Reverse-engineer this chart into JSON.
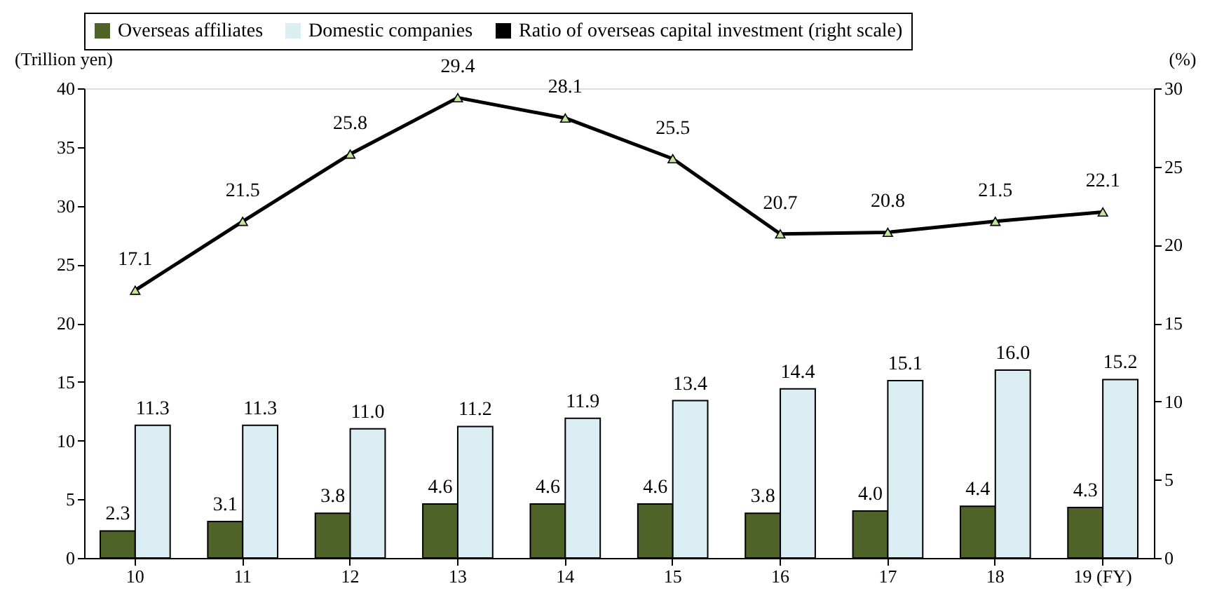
{
  "chart_data": {
    "type": "bar",
    "categories": [
      "10",
      "11",
      "12",
      "13",
      "14",
      "15",
      "16",
      "17",
      "18",
      "19 (FY)"
    ],
    "ylabel": "(Trillion yen)",
    "y2label": "(%)",
    "ylim": [
      0,
      40
    ],
    "yticks": [
      0,
      5,
      10,
      15,
      20,
      25,
      30,
      35,
      40
    ],
    "y2lim": [
      0,
      30
    ],
    "y2ticks": [
      0,
      5,
      10,
      15,
      20,
      25,
      30
    ],
    "series": [
      {
        "name": "Overseas affiliates",
        "color": "#4f6228",
        "values": [
          2.3,
          3.1,
          3.8,
          4.6,
          4.6,
          4.6,
          3.8,
          4.0,
          4.4,
          4.3
        ],
        "value_labels": [
          "2.3",
          "3.1",
          "3.8",
          "4.6",
          "4.6",
          "4.6",
          "3.8",
          "4.0",
          "4.4",
          "4.3"
        ]
      },
      {
        "name": "Domestic companies",
        "color": "#dbeef4",
        "values": [
          11.3,
          11.3,
          11.0,
          11.2,
          11.9,
          13.4,
          14.4,
          15.1,
          16.0,
          15.2
        ],
        "value_labels": [
          "11.3",
          "11.3",
          "11.0",
          "11.2",
          "11.9",
          "13.4",
          "14.4",
          "15.1",
          "16.0",
          "15.2"
        ]
      },
      {
        "name": "Ratio of overseas capital investment (right scale)",
        "type": "line",
        "axis": "y2",
        "color": "#000000",
        "marker": "triangle",
        "values": [
          17.1,
          21.5,
          25.8,
          29.4,
          28.1,
          25.5,
          20.7,
          20.8,
          21.5,
          22.1
        ],
        "value_labels": [
          "17.1",
          "21.5",
          "25.8",
          "29.4",
          "28.1",
          "25.5",
          "20.7",
          "20.8",
          "21.5",
          "22.1"
        ]
      }
    ],
    "legend": "top"
  }
}
